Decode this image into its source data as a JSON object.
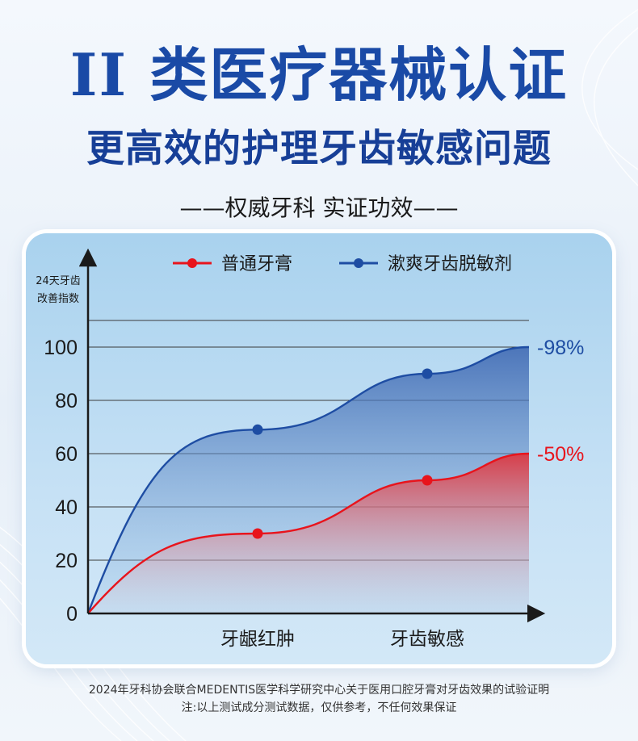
{
  "header": {
    "title": "II 类医疗器械认证",
    "subtitle": "更高效的护理牙齿敏感问题",
    "tagline": "——权威牙科 实证功效——"
  },
  "chart_data": {
    "type": "line",
    "title": "",
    "ylabel_lines": [
      "24天牙齿",
      "改善指数"
    ],
    "ylim": [
      0,
      100
    ],
    "yticks": [
      0,
      20,
      40,
      60,
      80,
      100
    ],
    "grid": true,
    "legend_position": "top",
    "categories": [
      "牙龈红肿",
      "牙齿敏感"
    ],
    "series": [
      {
        "name": "普通牙膏",
        "color": "#e8141c",
        "points": [
          [
            0,
            0
          ],
          [
            1,
            30
          ],
          [
            2,
            50
          ],
          [
            2.6,
            60
          ]
        ],
        "markers": [
          1,
          2
        ],
        "end_label": "-50%"
      },
      {
        "name": "漱爽牙齿脱敏剂",
        "color": "#1e4da3",
        "points": [
          [
            0,
            0
          ],
          [
            1,
            69
          ],
          [
            2,
            90
          ],
          [
            2.6,
            100
          ]
        ],
        "markers": [
          1,
          2
        ],
        "end_label": "-98%"
      }
    ]
  },
  "footer": {
    "line1": "2024年牙科协会联合MEDENTIS医学科学研究中心关于医用口腔牙膏对牙齿效果的试验证明",
    "line2": "注:以上测试成分测试数据，仅供参考，不任何效果保证"
  },
  "colors": {
    "title": "#1a4aa6",
    "red": "#e8141c",
    "blue": "#1e4da3"
  }
}
